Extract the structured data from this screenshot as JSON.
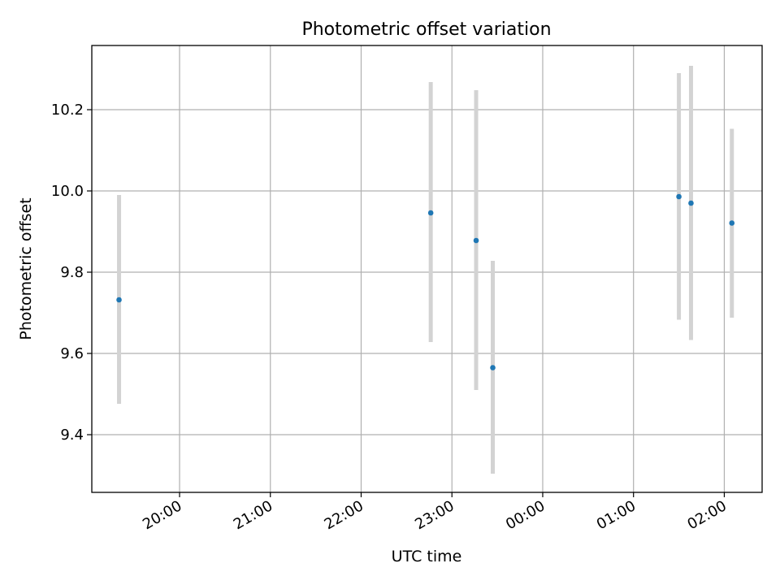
{
  "chart_data": {
    "type": "scatter",
    "title": "Photometric offset variation",
    "xlabel": "UTC time",
    "ylabel": "Photometric offset",
    "x_axis_kind": "time",
    "xlim": [
      "19:02",
      "02:25"
    ],
    "ylim": [
      9.258,
      10.358
    ],
    "x_ticks": [
      "20:00",
      "21:00",
      "22:00",
      "23:00",
      "00:00",
      "01:00",
      "02:00"
    ],
    "y_ticks": [
      9.4,
      9.6,
      9.8,
      10.0,
      10.2
    ],
    "y_tick_labels": [
      "9.4",
      "9.6",
      "9.8",
      "10.0",
      "10.2"
    ],
    "grid": true,
    "legend": "none",
    "marker_color": "#1f77b4",
    "errorbar_color": "#d3d3d3",
    "points": [
      {
        "x": "19:20",
        "y": 9.732,
        "yerr_low": 9.476,
        "yerr_high": 9.99
      },
      {
        "x": "22:46",
        "y": 9.946,
        "yerr_low": 9.628,
        "yerr_high": 10.268
      },
      {
        "x": "23:16",
        "y": 9.878,
        "yerr_low": 9.51,
        "yerr_high": 10.248
      },
      {
        "x": "23:27",
        "y": 9.565,
        "yerr_low": 9.304,
        "yerr_high": 9.828
      },
      {
        "x": "01:30",
        "y": 9.986,
        "yerr_low": 9.683,
        "yerr_high": 10.29
      },
      {
        "x": "01:38",
        "y": 9.97,
        "yerr_low": 9.633,
        "yerr_high": 10.308
      },
      {
        "x": "02:05",
        "y": 9.921,
        "yerr_low": 9.688,
        "yerr_high": 10.153
      }
    ]
  }
}
